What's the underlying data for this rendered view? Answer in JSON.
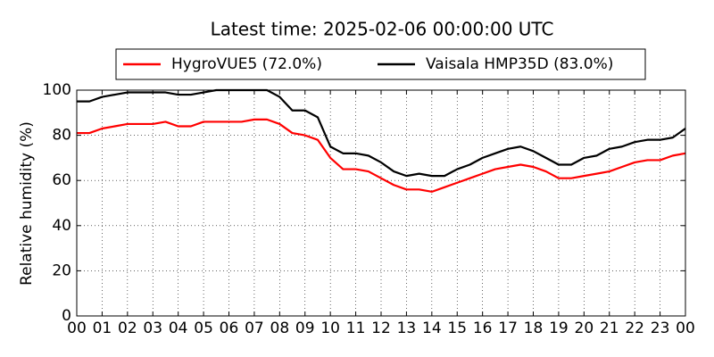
{
  "chart_data": {
    "type": "line",
    "title": "Latest time: 2025-02-06 00:00:00 UTC",
    "ylabel": "Relative humidity (%)",
    "x": [
      0,
      0.5,
      1,
      1.5,
      2,
      2.5,
      3,
      3.5,
      4,
      4.5,
      5,
      5.5,
      6,
      6.5,
      7,
      7.5,
      8,
      8.5,
      9,
      9.5,
      10,
      10.5,
      11,
      11.5,
      12,
      12.5,
      13,
      13.5,
      14,
      14.5,
      15,
      15.5,
      16,
      16.5,
      17,
      17.5,
      18,
      18.5,
      19,
      19.5,
      20,
      20.5,
      21,
      21.5,
      22,
      22.5,
      23,
      23.5,
      24
    ],
    "series": [
      {
        "name": "HygroVUE5 (72.0%)",
        "color": "#ff0000",
        "values": [
          81,
          81,
          83,
          84,
          85,
          85,
          85,
          86,
          84,
          84,
          86,
          86,
          86,
          86,
          87,
          87,
          85,
          81,
          80,
          78,
          70,
          65,
          65,
          64,
          61,
          58,
          56,
          56,
          55,
          57,
          59,
          61,
          63,
          65,
          66,
          67,
          66,
          64,
          61,
          61,
          62,
          63,
          64,
          66,
          68,
          69,
          69,
          71,
          72
        ]
      },
      {
        "name": "Vaisala HMP35D (83.0%)",
        "color": "#000000",
        "values": [
          95,
          95,
          97,
          98,
          99,
          99,
          99,
          99,
          98,
          98,
          99,
          100,
          100,
          100,
          100,
          100,
          97,
          91,
          91,
          88,
          75,
          72,
          72,
          71,
          68,
          64,
          62,
          63,
          62,
          62,
          65,
          67,
          70,
          72,
          74,
          75,
          73,
          70,
          67,
          67,
          70,
          71,
          74,
          75,
          77,
          78,
          78,
          79,
          83
        ]
      }
    ],
    "xlim": [
      0,
      24
    ],
    "xticks": [
      {
        "value": 0,
        "label": "00"
      },
      {
        "value": 1,
        "label": "01"
      },
      {
        "value": 2,
        "label": "02"
      },
      {
        "value": 3,
        "label": "03"
      },
      {
        "value": 4,
        "label": "04"
      },
      {
        "value": 5,
        "label": "05"
      },
      {
        "value": 6,
        "label": "06"
      },
      {
        "value": 7,
        "label": "07"
      },
      {
        "value": 8,
        "label": "08"
      },
      {
        "value": 9,
        "label": "09"
      },
      {
        "value": 10,
        "label": "10"
      },
      {
        "value": 11,
        "label": "11"
      },
      {
        "value": 12,
        "label": "12"
      },
      {
        "value": 13,
        "label": "13"
      },
      {
        "value": 14,
        "label": "14"
      },
      {
        "value": 15,
        "label": "15"
      },
      {
        "value": 16,
        "label": "16"
      },
      {
        "value": 17,
        "label": "17"
      },
      {
        "value": 18,
        "label": "18"
      },
      {
        "value": 19,
        "label": "19"
      },
      {
        "value": 20,
        "label": "20"
      },
      {
        "value": 21,
        "label": "21"
      },
      {
        "value": 22,
        "label": "22"
      },
      {
        "value": 23,
        "label": "23"
      },
      {
        "value": 24,
        "label": "00"
      }
    ],
    "ylim": [
      0,
      100
    ],
    "yticks": [
      0,
      20,
      40,
      60,
      80,
      100
    ],
    "grid": true,
    "legend": "top"
  }
}
